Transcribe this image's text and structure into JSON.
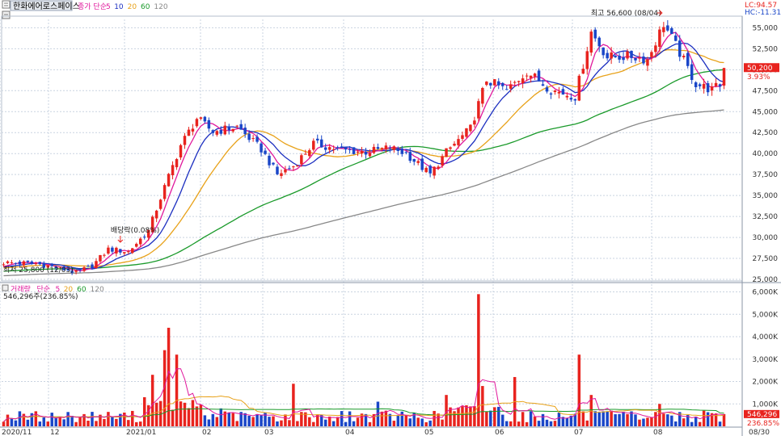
{
  "header": {
    "stock_name": "한화에어로스페이스",
    "price_legend": [
      {
        "text": "종가 단순",
        "color": "#e0189c"
      },
      {
        "text": "5",
        "color": "#e0189c"
      },
      {
        "text": "10",
        "color": "#1c2fc0"
      },
      {
        "text": "20",
        "color": "#e8a21a"
      },
      {
        "text": "60",
        "color": "#1a9a2a"
      },
      {
        "text": "120",
        "color": "#888888"
      }
    ],
    "lc_label": "LC:94.57",
    "hc_label": "HC:-11.31"
  },
  "price_panel": {
    "y_ticks": [
      "55,000",
      "52,500",
      "50,000",
      "47,500",
      "45,000",
      "42,500",
      "40,000",
      "37,500",
      "35,000",
      "32,500",
      "30,000",
      "27,500",
      "25,000"
    ],
    "current_price": "50,200",
    "current_change": "3.93%",
    "high_annotation": "최고 56,600 (08/04)",
    "low_annotation": "최저 25,800 (12/03)",
    "dividend_annotation": "배당락(0.08%)"
  },
  "volume_panel": {
    "legend": [
      {
        "text": "거래량",
        "color": "#e0189c"
      },
      {
        "text": "단순",
        "color": "#e0189c"
      },
      {
        "text": "5",
        "color": "#e0189c"
      },
      {
        "text": "20",
        "color": "#e8a21a"
      },
      {
        "text": "60",
        "color": "#1a9a2a"
      },
      {
        "text": "120",
        "color": "#888888"
      }
    ],
    "current_volume": "546,296주(236.85%)",
    "y_ticks": [
      "6,000K",
      "5,000K",
      "4,000K",
      "3,000K",
      "2,000K",
      "1,000K"
    ],
    "current_volume_tag": "546,296",
    "current_volume_pct": "236.85%"
  },
  "x_axis": {
    "labels": [
      "2020/11",
      "12",
      "2021/01",
      "02",
      "03",
      "04",
      "05",
      "06",
      "07",
      "08"
    ],
    "end_label": "08/30"
  },
  "colors": {
    "up": "#e8231e",
    "down": "#1a46c8",
    "ma5": "#e0189c",
    "ma10": "#1c2fc0",
    "ma20": "#e8a21a",
    "ma60": "#1a9a2a",
    "ma120": "#888888",
    "grid": "#c9d3e0"
  },
  "chart_data": {
    "type": "candlestick",
    "title": "한화에어로스페이스",
    "y_range": [
      25000,
      56000
    ],
    "volume_range_k": [
      0,
      6200
    ],
    "period": "2020/11 - 08/30",
    "price_keypoints": [
      {
        "x": 0,
        "price": 27000
      },
      {
        "x": 8,
        "price": 26900
      },
      {
        "x": 16,
        "price": 26100
      },
      {
        "x": 18,
        "price": 25800
      },
      {
        "x": 22,
        "price": 26600
      },
      {
        "x": 26,
        "price": 28600
      },
      {
        "x": 31,
        "price": 28300
      },
      {
        "x": 36,
        "price": 30800
      },
      {
        "x": 40,
        "price": 36000
      },
      {
        "x": 44,
        "price": 41000
      },
      {
        "x": 48,
        "price": 44200
      },
      {
        "x": 52,
        "price": 42600
      },
      {
        "x": 58,
        "price": 43200
      },
      {
        "x": 64,
        "price": 40500
      },
      {
        "x": 68,
        "price": 37500
      },
      {
        "x": 72,
        "price": 38500
      },
      {
        "x": 77,
        "price": 41200
      },
      {
        "x": 84,
        "price": 40400
      },
      {
        "x": 90,
        "price": 40200
      },
      {
        "x": 96,
        "price": 40700
      },
      {
        "x": 100,
        "price": 40000
      },
      {
        "x": 106,
        "price": 37500
      },
      {
        "x": 110,
        "price": 40200
      },
      {
        "x": 116,
        "price": 43000
      },
      {
        "x": 120,
        "price": 48800
      },
      {
        "x": 125,
        "price": 47500
      },
      {
        "x": 130,
        "price": 49800
      },
      {
        "x": 136,
        "price": 47600
      },
      {
        "x": 142,
        "price": 46800
      },
      {
        "x": 146,
        "price": 54500
      },
      {
        "x": 150,
        "price": 51500
      },
      {
        "x": 156,
        "price": 51600
      },
      {
        "x": 160,
        "price": 51200
      },
      {
        "x": 164,
        "price": 55500
      },
      {
        "x": 168,
        "price": 52000
      },
      {
        "x": 172,
        "price": 48300
      },
      {
        "x": 176,
        "price": 47600
      },
      {
        "x": 178,
        "price": 48200
      },
      {
        "x": 179,
        "price": 50200
      }
    ],
    "volume_spikes_k": [
      {
        "x": 35,
        "volume": 1300
      },
      {
        "x": 37,
        "volume": 2300
      },
      {
        "x": 40,
        "volume": 3400
      },
      {
        "x": 41,
        "volume": 4400
      },
      {
        "x": 43,
        "volume": 3200
      },
      {
        "x": 54,
        "volume": 800
      },
      {
        "x": 72,
        "volume": 1900
      },
      {
        "x": 93,
        "volume": 1100
      },
      {
        "x": 110,
        "volume": 1400
      },
      {
        "x": 118,
        "volume": 5900
      },
      {
        "x": 119,
        "volume": 1800
      },
      {
        "x": 127,
        "volume": 2200
      },
      {
        "x": 143,
        "volume": 3200
      },
      {
        "x": 146,
        "volume": 1400
      },
      {
        "x": 163,
        "volume": 1000
      }
    ],
    "current_volume": 546296
  }
}
